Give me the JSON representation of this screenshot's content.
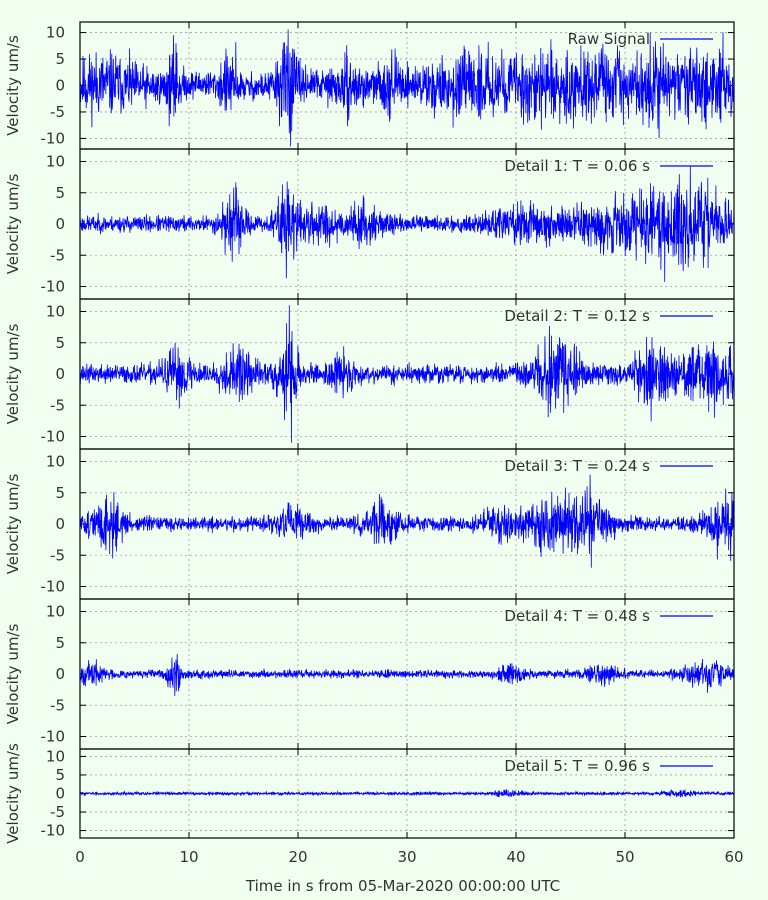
{
  "figure": {
    "xlabel": "Time in s from 05-Mar-2020 00:00:00 UTC",
    "background_color": "#f0fff0",
    "trace_color": "#0000ff",
    "axis_color": "#000000",
    "grid_color": "#a0a0a0"
  },
  "chart_data": [
    {
      "type": "line",
      "legend": "Raw Signal",
      "legend_placement": "top-right",
      "ylabel": "Velocity um/s",
      "xlim": [
        0,
        60
      ],
      "ylim": [
        -12,
        12
      ],
      "yticks": [
        -10,
        -5,
        0,
        5,
        10
      ],
      "grid": true,
      "trace": {
        "seed": 11,
        "base_amp": 1.6,
        "bursts": [
          [
            2,
            4,
            2.2
          ],
          [
            8.6,
            0.6,
            3.0
          ],
          [
            13.5,
            0.7,
            2.4
          ],
          [
            19,
            1.0,
            4.0
          ],
          [
            24.5,
            1.5,
            1.8
          ],
          [
            28.5,
            1.0,
            2.0
          ],
          [
            33,
            2.5,
            1.4
          ],
          [
            37,
            3,
            2.0
          ],
          [
            42.5,
            3,
            2.8
          ],
          [
            48,
            3,
            2.6
          ],
          [
            52.5,
            1.5,
            2.8
          ],
          [
            57.5,
            3,
            3.2
          ]
        ],
        "spikes": [
          [
            19.1,
            10.6
          ],
          [
            19.3,
            -11.5
          ],
          [
            59.0,
            10.1
          ],
          [
            8.8,
            8.0
          ],
          [
            14.3,
            8.2
          ]
        ],
        "bias": 0.3
      }
    },
    {
      "type": "line",
      "legend": "Detail 1: T = 0.06 s",
      "legend_placement": "top-right",
      "ylabel": "Velocity um/s",
      "xlim": [
        0,
        60
      ],
      "ylim": [
        -12,
        12
      ],
      "yticks": [
        -10,
        -5,
        0,
        5,
        10
      ],
      "grid": true,
      "trace": {
        "seed": 23,
        "base_amp": 0.8,
        "bursts": [
          [
            14,
            1.0,
            2.6
          ],
          [
            19,
            1.0,
            3.2
          ],
          [
            22,
            2.0,
            1.4
          ],
          [
            26,
            1.5,
            1.4
          ],
          [
            41,
            3.5,
            1.4
          ],
          [
            50,
            5,
            2.0
          ],
          [
            56,
            4,
            3.0
          ]
        ],
        "spikes": [
          [
            19.0,
            6.8
          ],
          [
            19.6,
            -5.7
          ],
          [
            14.1,
            5.8
          ],
          [
            57.2,
            -7.0
          ],
          [
            57.6,
            7.4
          ]
        ],
        "bias": 0
      }
    },
    {
      "type": "line",
      "legend": "Detail 2: T = 0.12 s",
      "legend_placement": "top-right",
      "ylabel": "Velocity um/s",
      "xlim": [
        0,
        60
      ],
      "ylim": [
        -12,
        12
      ],
      "yticks": [
        -10,
        -5,
        0,
        5,
        10
      ],
      "grid": true,
      "trace": {
        "seed": 37,
        "base_amp": 0.9,
        "bursts": [
          [
            9,
            1.5,
            1.8
          ],
          [
            14.5,
            1.5,
            2.0
          ],
          [
            19,
            1.0,
            3.6
          ],
          [
            24,
            1.0,
            1.6
          ],
          [
            43,
            2.0,
            2.0
          ],
          [
            44.5,
            1.5,
            2.2
          ],
          [
            52.5,
            1.5,
            2.6
          ],
          [
            57.5,
            3,
            2.6
          ]
        ],
        "spikes": [
          [
            19.2,
            11.0
          ],
          [
            19.4,
            -11.0
          ],
          [
            52.4,
            -7.6
          ],
          [
            58.2,
            -7.0
          ]
        ],
        "bias": 0
      }
    },
    {
      "type": "line",
      "legend": "Detail 3: T = 0.24 s",
      "legend_placement": "top-right",
      "ylabel": "Velocity um/s",
      "xlim": [
        0,
        60
      ],
      "ylim": [
        -12,
        12
      ],
      "yticks": [
        -10,
        -5,
        0,
        5,
        10
      ],
      "grid": true,
      "trace": {
        "seed": 51,
        "base_amp": 0.7,
        "bursts": [
          [
            2.5,
            1.5,
            2.2
          ],
          [
            19.5,
            1.5,
            1.4
          ],
          [
            27.5,
            1.5,
            1.6
          ],
          [
            38.5,
            1.5,
            1.4
          ],
          [
            43,
            2.0,
            2.2
          ],
          [
            46.5,
            2.0,
            2.6
          ],
          [
            59,
            1.5,
            2.2
          ]
        ],
        "spikes": [
          [
            46.8,
            7.9
          ],
          [
            46.9,
            -7.0
          ],
          [
            59.7,
            -5.9
          ],
          [
            59.8,
            5.0
          ]
        ],
        "bias": 0
      }
    },
    {
      "type": "line",
      "legend": "Detail 4: T = 0.48 s",
      "legend_placement": "top-right",
      "ylabel": "Velocity um/s",
      "xlim": [
        0,
        60
      ],
      "ylim": [
        -12,
        12
      ],
      "yticks": [
        -10,
        -5,
        0,
        5,
        10
      ],
      "grid": true,
      "trace": {
        "seed": 67,
        "base_amp": 0.4,
        "bursts": [
          [
            1,
            1.5,
            0.8
          ],
          [
            8.7,
            0.6,
            1.6
          ],
          [
            39.5,
            1.0,
            0.8
          ],
          [
            48,
            1.5,
            0.7
          ],
          [
            57.5,
            2.0,
            1.2
          ]
        ],
        "spikes": [
          [
            8.8,
            2.3
          ],
          [
            9.1,
            -2.2
          ],
          [
            58.4,
            2.2
          ],
          [
            58.8,
            -2.0
          ]
        ],
        "bias": 0
      }
    },
    {
      "type": "line",
      "legend": "Detail 5: T = 0.96 s",
      "legend_placement": "top-right",
      "ylabel": "Velocity um/s",
      "xlim": [
        0,
        60
      ],
      "ylim": [
        -12,
        12
      ],
      "yticks": [
        -10,
        -5,
        0,
        5,
        10
      ],
      "xticks": [
        0,
        10,
        20,
        30,
        40,
        50,
        60
      ],
      "grid": true,
      "trace": {
        "seed": 83,
        "base_amp": 0.25,
        "bursts": [
          [
            39.5,
            1.5,
            0.5
          ],
          [
            55,
            1.5,
            0.4
          ]
        ],
        "spikes": [
          [
            39.7,
            0.9
          ]
        ],
        "bias": 0
      }
    }
  ]
}
